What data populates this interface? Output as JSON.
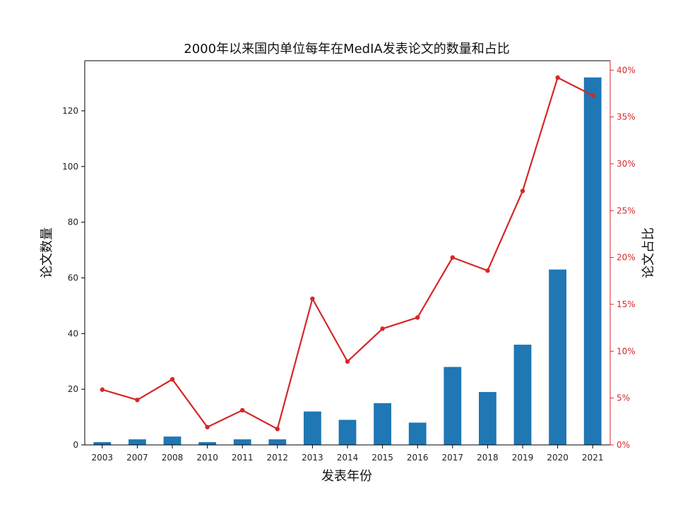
{
  "chart_data": {
    "type": "bar",
    "title": "2000年以来国内单位每年在MedIA发表论文的数量和占比",
    "xlabel": "发表年份",
    "ylabel": "论文数量",
    "y2label": "论文占比",
    "categories": [
      "2003",
      "2007",
      "2008",
      "2010",
      "2011",
      "2012",
      "2013",
      "2014",
      "2015",
      "2016",
      "2017",
      "2018",
      "2019",
      "2020",
      "2021"
    ],
    "ylim": [
      0,
      138
    ],
    "yticks": [
      0,
      20,
      40,
      60,
      80,
      100,
      120
    ],
    "y2lim": [
      0,
      41
    ],
    "y2ticks": [
      "0%",
      "5%",
      "10%",
      "15%",
      "20%",
      "25%",
      "30%",
      "35%",
      "40%"
    ],
    "y2tick_values": [
      0,
      5,
      10,
      15,
      20,
      25,
      30,
      35,
      40
    ],
    "series": [
      {
        "chart": "bar",
        "axis": "left",
        "color": "#1f77b4",
        "values": [
          1,
          2,
          3,
          1,
          2,
          2,
          12,
          9,
          15,
          8,
          28,
          19,
          36,
          63,
          132
        ]
      },
      {
        "chart": "line",
        "axis": "right",
        "unit": "%",
        "color": "#d62728",
        "values": [
          5.9,
          4.8,
          7.0,
          1.9,
          3.7,
          1.7,
          15.6,
          8.9,
          12.4,
          13.6,
          20.0,
          18.6,
          27.1,
          39.2,
          37.3
        ]
      }
    ],
    "grid": false,
    "legend": "none"
  }
}
